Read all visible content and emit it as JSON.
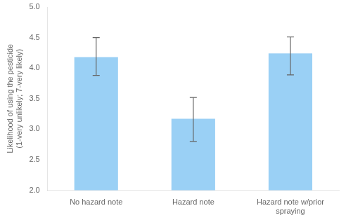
{
  "chart_data": {
    "type": "bar",
    "categories": [
      "No hazard note",
      "Hazard note",
      "Hazard note w/prior\nspraying"
    ],
    "values": [
      4.18,
      3.17,
      4.24
    ],
    "errors_upper": [
      0.32,
      0.35,
      0.27
    ],
    "errors_lower": [
      0.3,
      0.37,
      0.35
    ],
    "ylabel": "Likelihood of using the pesticide\n(1-very unlikely; 7-very likely)",
    "ylim": [
      2,
      5
    ],
    "yticks": [
      {
        "value": 2,
        "label": "2.0"
      },
      {
        "value": 2.5,
        "label": "2.5"
      },
      {
        "value": 3,
        "label": "3.0"
      },
      {
        "value": 3.5,
        "label": "3.5"
      },
      {
        "value": 4,
        "label": "4.0"
      },
      {
        "value": 4.5,
        "label": "4.5"
      },
      {
        "value": 5,
        "label": "5.0"
      }
    ],
    "grid": false
  }
}
